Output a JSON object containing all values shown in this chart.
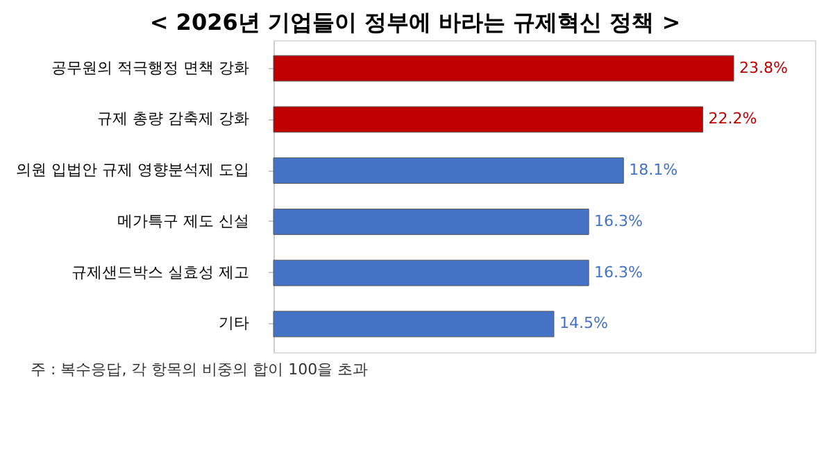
{
  "chart_data": {
    "type": "bar",
    "orientation": "horizontal",
    "title": "< 2026년 기업들이 정부에 바라는 규제혁신 정책 >",
    "categories": [
      "공무원의 적극행정 면책 강화",
      "규제 총량 감축제 강화",
      "의원 입법안 규제 영향분석제 도입",
      "메가특구 제도 신설",
      "규제샌드박스 실효성 제고",
      "기타"
    ],
    "values": [
      23.8,
      22.2,
      18.1,
      16.3,
      16.3,
      14.5
    ],
    "colors": [
      "#c00000",
      "#c00000",
      "#4472c4",
      "#4472c4",
      "#4472c4",
      "#4472c4"
    ],
    "value_labels": [
      "23.8%",
      "22.2%",
      "18.1%",
      "16.3%",
      "16.3%",
      "14.5%"
    ],
    "xlim": [
      0,
      28
    ],
    "tick_labels": "y",
    "grid": false,
    "annotations": [
      "주 : 복수응답, 각 항목의 비중의 합이 100을 초과"
    ]
  }
}
